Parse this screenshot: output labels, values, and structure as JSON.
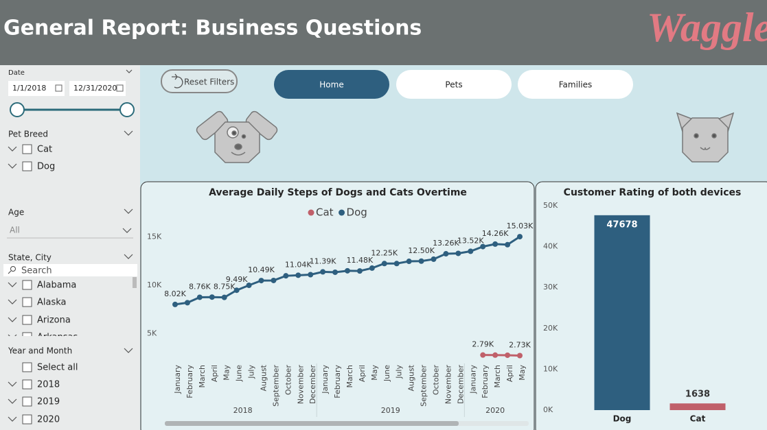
{
  "header": {
    "title": "General Report: Business Questions",
    "logo": "Waggle"
  },
  "filters": {
    "date": {
      "label": "Date",
      "start": "1/1/2018",
      "end": "12/31/2020"
    },
    "pet_breed": {
      "label": "Pet Breed",
      "options": [
        "Cat",
        "Dog"
      ]
    },
    "age": {
      "label": "Age",
      "value": "All"
    },
    "state_city": {
      "label": "State, City",
      "search": "Search",
      "options": [
        "Alabama",
        "Alaska",
        "Arizona",
        "Arkansas"
      ]
    },
    "year_month": {
      "label": "Year and Month",
      "select_all": "Select all",
      "options": [
        "2018",
        "2019",
        "2020"
      ]
    }
  },
  "buttons": {
    "reset": "Reset Filters",
    "nav": [
      "Home",
      "Pets",
      "Families"
    ]
  },
  "chart_data": [
    {
      "type": "line",
      "title": "Average Daily Steps of Dogs and Cats Overtime",
      "groups": [
        {
          "label": "2018",
          "categories": [
            "January",
            "February",
            "March",
            "April",
            "May",
            "June",
            "July",
            "August",
            "September",
            "October",
            "November",
            "December"
          ]
        },
        {
          "label": "2019",
          "categories": [
            "January",
            "February",
            "March",
            "April",
            "May",
            "June",
            "July",
            "August",
            "September",
            "October",
            "November",
            "December"
          ]
        },
        {
          "label": "2020",
          "categories": [
            "January",
            "February",
            "March",
            "April",
            "May"
          ]
        }
      ],
      "series": [
        {
          "name": "Cat",
          "color": "#c0606a",
          "values": [
            null,
            null,
            null,
            null,
            null,
            null,
            null,
            null,
            null,
            null,
            null,
            null,
            null,
            null,
            null,
            null,
            null,
            null,
            null,
            null,
            null,
            null,
            null,
            null,
            null,
            2790,
            2780,
            2770,
            2730
          ],
          "value_labels": [
            null,
            null,
            null,
            null,
            null,
            null,
            null,
            null,
            null,
            null,
            null,
            null,
            null,
            null,
            null,
            null,
            null,
            null,
            null,
            null,
            null,
            null,
            null,
            null,
            null,
            "2.79K",
            null,
            null,
            "2.73K"
          ]
        },
        {
          "name": "Dog",
          "color": "#2e5f7f",
          "values": [
            8020,
            8200,
            8760,
            8780,
            8750,
            9490,
            10000,
            10490,
            10500,
            10980,
            11040,
            11100,
            11390,
            11350,
            11500,
            11480,
            11780,
            12250,
            12250,
            12480,
            12500,
            12700,
            13260,
            13300,
            13520,
            14000,
            14260,
            14200,
            15030
          ],
          "value_labels": [
            "8.02K",
            null,
            "8.76K",
            null,
            "8.75K",
            "9.49K",
            null,
            "10.49K",
            null,
            null,
            "11.04K",
            null,
            "11.39K",
            null,
            null,
            "11.48K",
            null,
            "12.25K",
            null,
            null,
            "12.50K",
            null,
            "13.26K",
            null,
            "13.52K",
            null,
            "14.26K",
            null,
            "15.03K"
          ]
        }
      ],
      "ylim": [
        2000,
        16000
      ],
      "yticks": [
        {
          "value": 5000,
          "label": "5K"
        },
        {
          "value": 10000,
          "label": "10K"
        },
        {
          "value": 15000,
          "label": "15K"
        }
      ],
      "legend": "top",
      "grid": false
    },
    {
      "type": "bar",
      "title": "Customer Rating of both devices",
      "categories": [
        "Dog",
        "Cat"
      ],
      "values": [
        47678,
        1638
      ],
      "colors": [
        "#2e5f7f",
        "#c0606a"
      ],
      "ylim": [
        0,
        50000
      ],
      "yticks": [
        {
          "value": 0,
          "label": "0K"
        },
        {
          "value": 10000,
          "label": "10K"
        },
        {
          "value": 20000,
          "label": "20K"
        },
        {
          "value": 30000,
          "label": "30K"
        },
        {
          "value": 40000,
          "label": "40K"
        },
        {
          "value": 50000,
          "label": "50K"
        }
      ],
      "grid": false
    }
  ]
}
